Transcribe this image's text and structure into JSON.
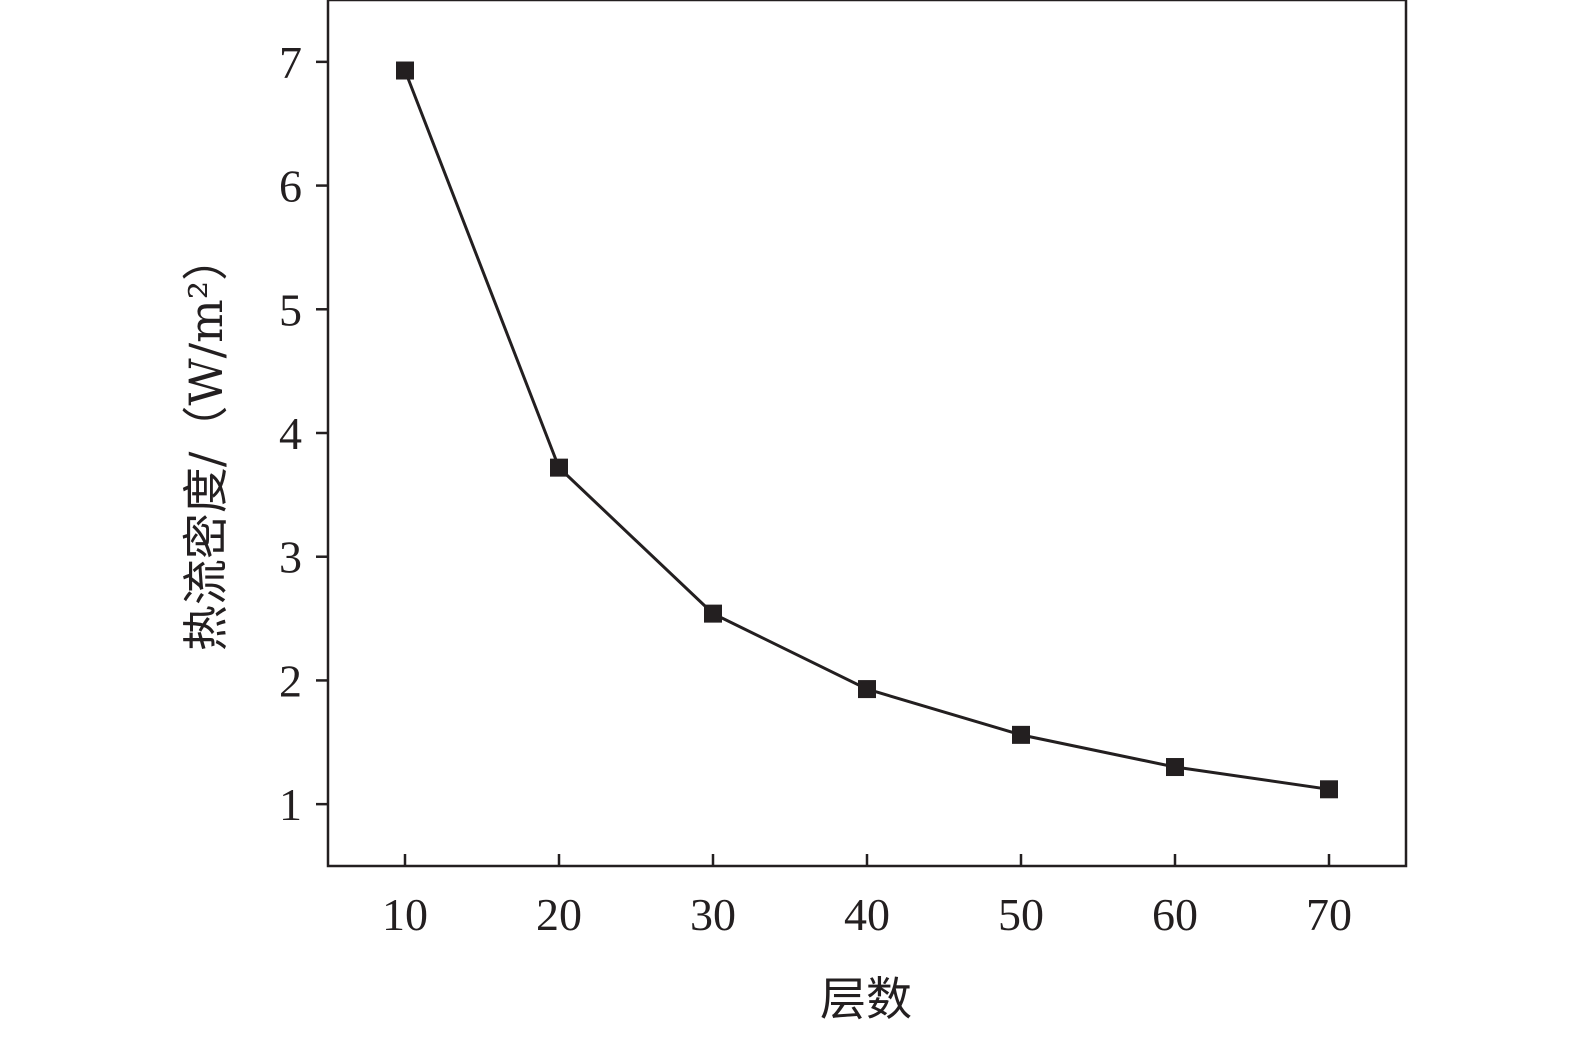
{
  "chart_data": {
    "type": "line",
    "title": "",
    "xlabel": "层数",
    "ylabel": "热流密度/（W/m²）",
    "x": [
      10,
      20,
      30,
      40,
      50,
      60,
      70
    ],
    "series": [
      {
        "values": [
          6.93,
          3.72,
          2.54,
          1.93,
          1.56,
          1.3,
          1.12
        ],
        "color": "#231f20",
        "marker": "square"
      }
    ],
    "xticks": [
      10,
      20,
      30,
      40,
      50,
      60,
      70
    ],
    "yticks": [
      1,
      2,
      3,
      4,
      5,
      6,
      7
    ],
    "xlim": [
      5,
      75
    ],
    "ylim": [
      0.5,
      7.5
    ],
    "grid": false,
    "legend": "none"
  }
}
